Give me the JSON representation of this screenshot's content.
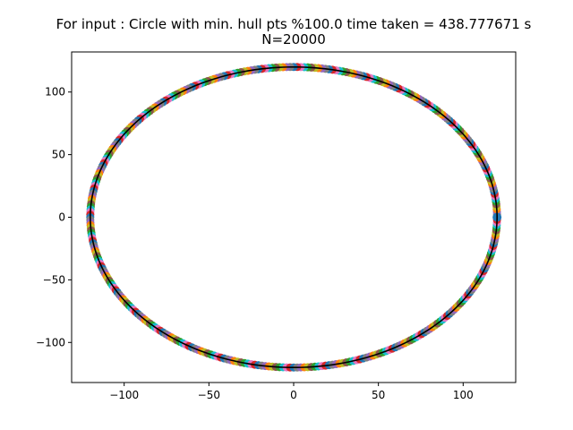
{
  "chart_data": {
    "type": "scatter",
    "title": "For input : Circle with min. hull pts %100.0 time taken = 438.777671 s",
    "subtitle": "N=20000",
    "xlabel": "",
    "ylabel": "",
    "xlim": [
      -131,
      131
    ],
    "ylim": [
      -132,
      132
    ],
    "xticks": [
      -100,
      -50,
      0,
      50,
      100
    ],
    "yticks": [
      -100,
      -50,
      0,
      50,
      100
    ],
    "xtick_labels": [
      "−100",
      "−50",
      "0",
      "50",
      "100"
    ],
    "ytick_labels": [
      "−100",
      "−50",
      "0",
      "50",
      "100"
    ],
    "grid": false,
    "legend": "none",
    "points": {
      "shape": "circle",
      "radius": 120,
      "count": 20000,
      "center": [
        0,
        0
      ]
    },
    "hull": {
      "shape": "circle",
      "radius": 120,
      "center": [
        0,
        0
      ],
      "color": "#000000"
    },
    "point_colors": [
      "#1f77b4",
      "#ff7f0e",
      "#2ca02c",
      "#d62728",
      "#9467bd",
      "#8c564b",
      "#e377c2",
      "#7f7f7f",
      "#bcbd22",
      "#17becf"
    ]
  }
}
